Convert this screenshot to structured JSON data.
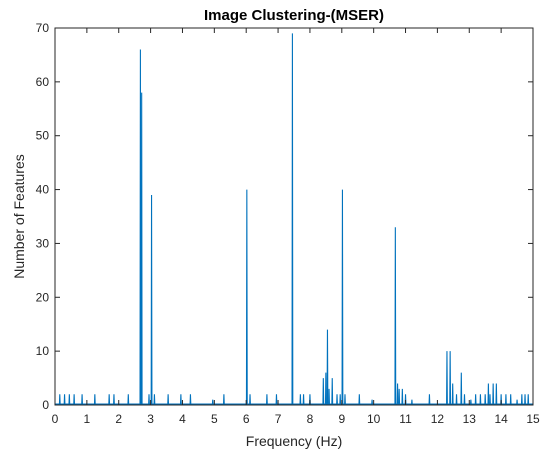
{
  "chart_data": {
    "type": "line",
    "title": "Image Clustering-(MSER)",
    "xlabel": "Frequency (Hz)",
    "ylabel": "Number of Features",
    "xlim": [
      0,
      15
    ],
    "ylim": [
      0,
      70
    ],
    "xticks": [
      0,
      1,
      2,
      3,
      4,
      5,
      6,
      7,
      8,
      9,
      10,
      11,
      12,
      13,
      14,
      15
    ],
    "yticks": [
      0,
      10,
      20,
      30,
      40,
      50,
      60,
      70
    ],
    "xtick_labels": [
      "0",
      "1",
      "2",
      "3",
      "4",
      "5",
      "6",
      "7",
      "8",
      "9",
      "10",
      "11",
      "12",
      "13",
      "14",
      "15"
    ],
    "ytick_labels": [
      "0",
      "10",
      "20",
      "30",
      "40",
      "50",
      "60",
      "70"
    ],
    "grid": false,
    "line_color": "#0072BD",
    "series": [
      {
        "x": [
          0.15,
          0.3,
          0.45,
          0.6,
          0.85,
          1.25,
          1.7,
          1.85,
          2.3,
          2.68,
          2.72,
          2.95,
          3.03,
          3.12,
          3.55,
          3.95,
          4.25,
          4.95,
          5.3,
          6.02,
          6.12,
          6.65,
          6.95,
          7.45,
          7.7,
          7.8,
          8.0,
          8.42,
          8.5,
          8.55,
          8.6,
          8.7,
          8.85,
          8.95,
          9.02,
          9.1,
          9.55,
          9.95,
          10.68,
          10.75,
          10.8,
          10.9,
          11.0,
          11.2,
          11.75,
          12.3,
          12.4,
          12.48,
          12.6,
          12.75,
          12.85,
          13.05,
          13.2,
          13.35,
          13.5,
          13.6,
          13.65,
          13.75,
          13.85,
          14.0,
          14.15,
          14.3,
          14.5,
          14.65,
          14.75,
          14.85
        ],
        "values": [
          2,
          2,
          2,
          2,
          2,
          2,
          2,
          2,
          2,
          66,
          58,
          2,
          39,
          2,
          2,
          2,
          2,
          1,
          2,
          40,
          2,
          2,
          2,
          69,
          2,
          2,
          2,
          5,
          6,
          14,
          3,
          5,
          2,
          2,
          40,
          2,
          2,
          1,
          33,
          4,
          3,
          3,
          2,
          1,
          2,
          10,
          10,
          4,
          2,
          6,
          2,
          1,
          2,
          2,
          2,
          4,
          2,
          4,
          4,
          2,
          2,
          2,
          1,
          2,
          2,
          2
        ]
      }
    ]
  }
}
